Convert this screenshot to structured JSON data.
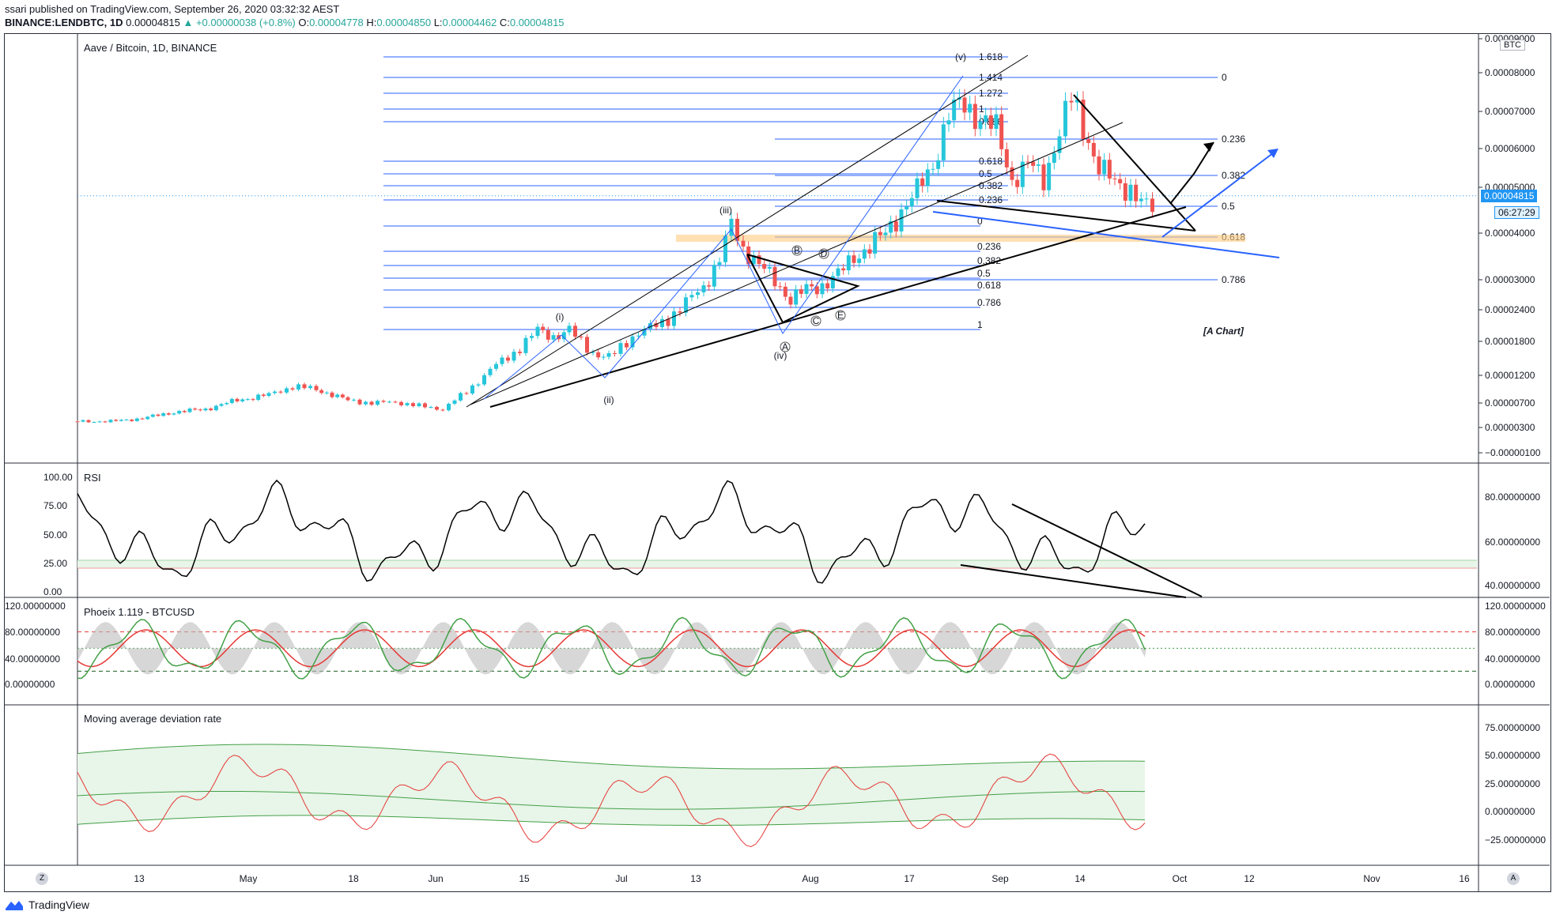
{
  "header": {
    "line1": "ssari published on TradingView.com, September 26, 2020 03:32:32 AEST",
    "symbol": "BINANCE:LENDBTC, 1D",
    "last": "0.00004815",
    "change": "+0.00000038 (+0.8%)",
    "o_label": "O:",
    "o": "0.00004778",
    "h_label": "H:",
    "h": "0.00004850",
    "l_label": "L:",
    "l": "0.00004462",
    "c_label": "C:",
    "c": "0.00004815"
  },
  "colors": {
    "up": "#26c6da",
    "down": "#ef5350",
    "fib": "#2962ff",
    "trend": "#000000",
    "orange": "#ff9800",
    "rsi_line": "#000000",
    "green": "#43a047",
    "red": "#e53935",
    "band_fill": "#e8f5e9",
    "grid": "#f0f3fa"
  },
  "panes": {
    "main_title": "Aave / Bitcoin, 1D, BINANCE",
    "rsi_title": "RSI",
    "phoenix_title": "Phoeix 1.119 - BTCUSD",
    "mad_title": "Moving average deviation rate",
    "scale_badge": "BTC",
    "price_tag": "0.00004815",
    "time_tag": "06:27:29",
    "corner_left": "Z",
    "corner_right": "A"
  },
  "chart_data": [
    {
      "type": "candlestick",
      "title": "Aave / Bitcoin, 1D, BINANCE",
      "y_axis_labels": [
        "0.00009000",
        "0.00008000",
        "0.00007000",
        "0.00006000",
        "0.00005000",
        "0.00004000",
        "0.00003000",
        "0.00002400",
        "0.00001800",
        "0.00001200",
        "0.00000700",
        "0.00000300",
        "−0.00000100"
      ],
      "x_axis_labels": [
        "13",
        "May",
        "18",
        "Jun",
        "15",
        "Jul",
        "13",
        "Aug",
        "17",
        "Sep",
        "14",
        "Oct",
        "12",
        "Nov",
        "16"
      ],
      "last_price": 4.815e-05,
      "wave_labels": [
        "(i)",
        "(ii)",
        "(iii)",
        "(iv)",
        "(v)"
      ],
      "triangle_labels": [
        "A",
        "B",
        "C",
        "D",
        "E"
      ],
      "fib_left_labels": [
        "0",
        "0.236",
        "0.382",
        "0.5",
        "0.618",
        "0.786",
        "1"
      ],
      "fib_top_labels": [
        "1.618",
        "1.414",
        "1.272",
        "1",
        "0.886",
        "0.618",
        "0.5",
        "0.382",
        "0.236"
      ],
      "fib_right_labels": [
        "0",
        "0.236",
        "0.382",
        "0.5",
        "0.618",
        "0.786"
      ],
      "annotation": "[A Chart]"
    },
    {
      "type": "line",
      "title": "RSI",
      "left_axis_labels": [
        "100.00",
        "75.00",
        "50.00",
        "25.00",
        "0.00"
      ],
      "right_axis_labels": [
        "80.00000000",
        "60.00000000",
        "40.00000000"
      ]
    },
    {
      "type": "line",
      "title": "Phoeix 1.119 - BTCUSD",
      "left_axis_labels": [
        "120.00000000",
        "80.00000000",
        "40.00000000",
        "0.00000000"
      ],
      "right_axis_labels": [
        "120.00000000",
        "80.00000000",
        "40.00000000",
        "0.00000000"
      ],
      "levels": [
        80,
        55,
        20
      ]
    },
    {
      "type": "area",
      "title": "Moving average deviation rate",
      "right_axis_labels": [
        "75.00000000",
        "50.00000000",
        "25.00000000",
        "0.00000000",
        "−25.00000000"
      ]
    }
  ]
}
